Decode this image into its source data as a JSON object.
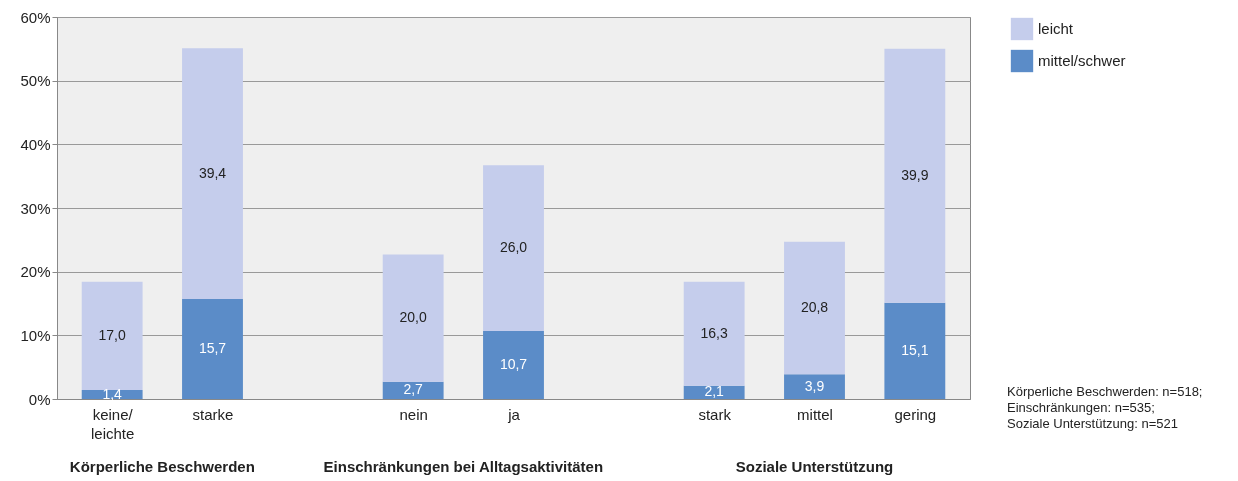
{
  "chart_data": {
    "type": "bar",
    "stacked": true,
    "categories": [
      "keine/ leichte",
      "starke",
      null,
      "nein",
      "ja",
      null,
      "stark",
      "mittel",
      "gering"
    ],
    "series": [
      {
        "name": "mittel/schwer",
        "color": "#5b8cc8",
        "values": [
          1.4,
          15.7,
          null,
          2.7,
          10.7,
          null,
          2.1,
          3.9,
          15.1
        ],
        "value_labels": [
          "1,4",
          "15,7",
          null,
          "2,7",
          "10,7",
          null,
          "2,1",
          "3,9",
          "15,1"
        ]
      },
      {
        "name": "leicht",
        "color": "#c5cdec",
        "values": [
          17.0,
          39.4,
          null,
          20.0,
          26.0,
          null,
          16.3,
          20.8,
          39.9
        ],
        "value_labels": [
          "17,0",
          "39,4",
          null,
          "20,0",
          "26,0",
          null,
          "16,3",
          "20,8",
          "39,9"
        ]
      }
    ],
    "ylim": [
      0,
      60
    ],
    "yticks": [
      {
        "value": 0,
        "label": "0%"
      },
      {
        "value": 10,
        "label": "10%"
      },
      {
        "value": 20,
        "label": "20%"
      },
      {
        "value": 30,
        "label": "30%"
      },
      {
        "value": 40,
        "label": "40%"
      },
      {
        "value": 50,
        "label": "50%"
      },
      {
        "value": 60,
        "label": "60%"
      }
    ],
    "grid": "y",
    "legend": "top right",
    "annotations": [
      "Körperliche Beschwerden",
      "Einschränkungen bei Alltagsaktivitäten",
      "Soziale Unterstützung",
      "Körperliche Beschwerden: n=518;\nEinschränkungen: n=535;\nSoziale Unterstützung: n=521"
    ]
  }
}
